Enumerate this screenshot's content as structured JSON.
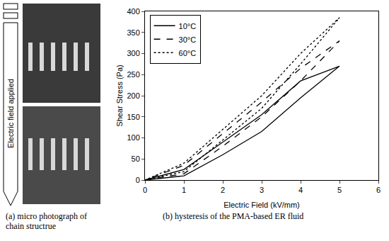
{
  "photo": {
    "arrow_label": "Electric field applied",
    "caption": "(a) micro photograph of chain structrue"
  },
  "chart_data": {
    "type": "line",
    "caption": "(b) hysteresis of the PMA-based ER fluid",
    "x_label": "Electric Field (kV/mm)",
    "y_label": "Shear Stress (Pa)",
    "x": [
      0,
      1,
      2,
      3,
      4,
      5,
      4,
      3,
      2,
      1,
      0
    ],
    "series": [
      {
        "name": "10°C",
        "color": "#000000",
        "line_style": "solid",
        "values": [
          0,
          10,
          60,
          115,
          195,
          270,
          235,
          155,
          90,
          25,
          0
        ]
      },
      {
        "name": "30°C",
        "color": "#000000",
        "line_style": "dash",
        "values": [
          0,
          15,
          80,
          150,
          235,
          330,
          265,
          185,
          110,
          35,
          0
        ]
      },
      {
        "name": "60°C",
        "color": "#000000",
        "line_style": "dot",
        "values": [
          0,
          20,
          95,
          170,
          275,
          385,
          300,
          200,
          120,
          40,
          0
        ]
      }
    ],
    "xlim": [
      0,
      6
    ],
    "xticks": [
      0,
      1,
      2,
      3,
      4,
      5,
      6
    ],
    "ylim": [
      0,
      400
    ],
    "yticks": [
      0,
      50,
      100,
      150,
      200,
      250,
      300,
      350,
      400
    ],
    "grid": false,
    "legend": "upper left"
  }
}
